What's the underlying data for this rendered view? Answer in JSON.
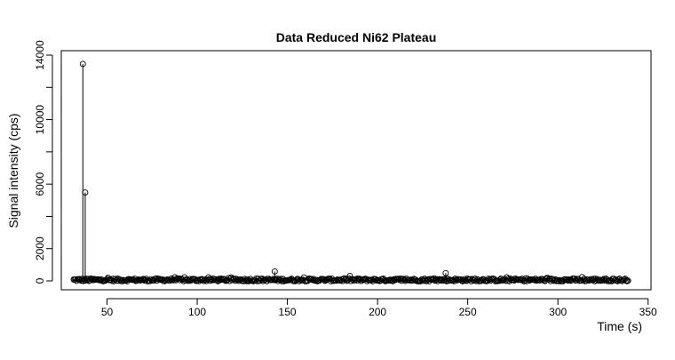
{
  "chart_data": {
    "type": "scatter",
    "title": "Data Reduced Ni62 Plateau",
    "xlabel": "Time (s)",
    "ylabel": "Signal intensity (cps)",
    "xlim": [
      30,
      340
    ],
    "ylim": [
      -200,
      14000
    ],
    "xticks": [
      50,
      100,
      150,
      200,
      250,
      300,
      350
    ],
    "yticks": [
      0,
      2000,
      6000,
      10000,
      14000
    ],
    "ytick_labels": [
      "0",
      "2000",
      "6000",
      "10000",
      "14000"
    ],
    "grid": false,
    "legend": "none",
    "marker": "open-circle",
    "line_style": "type-h (vertical lines from zero)",
    "spikes": [
      {
        "x": 36.6,
        "y": 13450
      },
      {
        "x": 37.9,
        "y": 5480
      },
      {
        "x": 143.0,
        "y": 580
      },
      {
        "x": 237.8,
        "y": 480
      }
    ],
    "baseline": {
      "x_start": 31.5,
      "x_end": 339.0,
      "x_step": 0.53,
      "level": 60,
      "noise": 90
    },
    "colors": {
      "points": "#000000",
      "axes": "#000000",
      "background": "#ffffff"
    }
  }
}
